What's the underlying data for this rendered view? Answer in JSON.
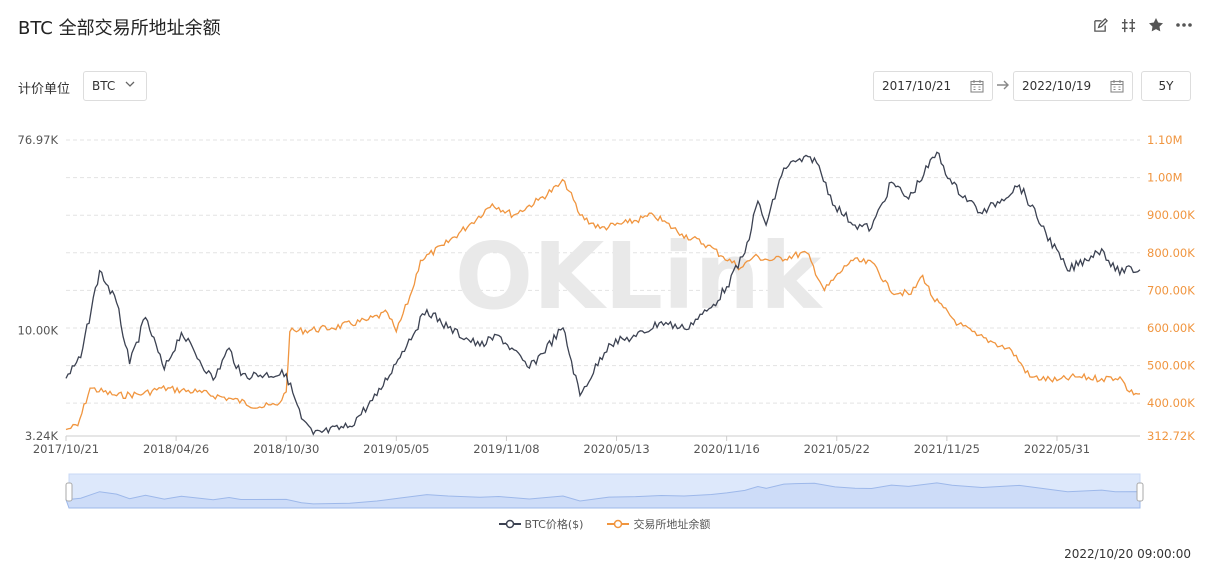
{
  "header": {
    "title": "BTC 全部交易所地址余额"
  },
  "toolbar": {
    "icons": [
      "edit-icon",
      "split-icon",
      "star-icon",
      "more-icon"
    ]
  },
  "controls": {
    "unit_label": "计价单位",
    "unit_value": "BTC",
    "start_date": "2017/10/21",
    "end_date": "2022/10/19",
    "range_button": "5Y"
  },
  "watermark": "OKLink",
  "timestamp": "2022/10/20 09:00:00",
  "colors": {
    "price": "#3c4252",
    "balance": "#f0953f",
    "navigator": "#dde8fb",
    "navigator_line": "#9db8ea"
  },
  "chart_data": {
    "type": "line",
    "x_ticks": [
      "2017/10/21",
      "2018/04/26",
      "2018/10/30",
      "2019/05/05",
      "2019/11/08",
      "2020/05/13",
      "2020/11/16",
      "2021/05/22",
      "2021/11/25",
      "2022/05/31"
    ],
    "y_left": {
      "scale": "log",
      "ticks": [
        "76.97K",
        "10.00K",
        "3.24K"
      ],
      "range": [
        3240,
        76970
      ]
    },
    "y_right": {
      "ticks": [
        "1.10M",
        "1.00M",
        "900.00K",
        "800.00K",
        "700.00K",
        "600.00K",
        "500.00K",
        "400.00K",
        "312.72K"
      ],
      "range": [
        312720,
        1100000
      ]
    },
    "legend": {
      "placement": "bottom-center"
    },
    "grid": true,
    "series": [
      {
        "name": "BTC价格($)",
        "axis": "left",
        "points": [
          [
            "2017/10/21",
            6000
          ],
          [
            "2017/11/15",
            7500
          ],
          [
            "2017/12/17",
            19000
          ],
          [
            "2018/01/15",
            13500
          ],
          [
            "2018/02/06",
            7000
          ],
          [
            "2018/03/05",
            11500
          ],
          [
            "2018/04/06",
            6600
          ],
          [
            "2018/05/05",
            9800
          ],
          [
            "2018/06/28",
            5900
          ],
          [
            "2018/07/25",
            8300
          ],
          [
            "2018/08/14",
            6200
          ],
          [
            "2018/10/30",
            6300
          ],
          [
            "2018/11/25",
            3900
          ],
          [
            "2018/12/15",
            3300
          ],
          [
            "2019/02/15",
            3600
          ],
          [
            "2019/04/02",
            5000
          ],
          [
            "2019/05/15",
            8000
          ],
          [
            "2019/06/26",
            12500
          ],
          [
            "2019/08/01",
            10300
          ],
          [
            "2019/09/24",
            8500
          ],
          [
            "2019/10/26",
            9500
          ],
          [
            "2019/12/17",
            6700
          ],
          [
            "2020/02/12",
            10300
          ],
          [
            "2020/03/12",
            5000
          ],
          [
            "2020/04/30",
            8700
          ],
          [
            "2020/06/15",
            9400
          ],
          [
            "2020/07/28",
            11000
          ],
          [
            "2020/09/05",
            10200
          ],
          [
            "2020/10/21",
            12800
          ],
          [
            "2020/11/16",
            16000
          ],
          [
            "2020/12/17",
            23000
          ],
          [
            "2021/01/08",
            40000
          ],
          [
            "2021/01/22",
            31000
          ],
          [
            "2021/02/21",
            57000
          ],
          [
            "2021/03/13",
            61000
          ],
          [
            "2021/04/14",
            63500
          ],
          [
            "2021/05/19",
            38000
          ],
          [
            "2021/06/22",
            31000
          ],
          [
            "2021/07/20",
            30000
          ],
          [
            "2021/08/23",
            49000
          ],
          [
            "2021/09/21",
            41000
          ],
          [
            "2021/11/08",
            67500
          ],
          [
            "2021/12/04",
            48000
          ],
          [
            "2022/01/24",
            35000
          ],
          [
            "2022/03/28",
            47500
          ],
          [
            "2022/05/12",
            28500
          ],
          [
            "2022/06/18",
            19000
          ],
          [
            "2022/08/15",
            24000
          ],
          [
            "2022/09/07",
            19000
          ],
          [
            "2022/10/19",
            19200
          ]
        ]
      },
      {
        "name": "交易所地址余额",
        "axis": "right",
        "points": [
          [
            "2017/10/21",
            330000
          ],
          [
            "2017/11/10",
            340000
          ],
          [
            "2017/12/01",
            440000
          ],
          [
            "2018/01/15",
            420000
          ],
          [
            "2018/03/01",
            425000
          ],
          [
            "2018/04/01",
            440000
          ],
          [
            "2018/06/01",
            430000
          ],
          [
            "2018/08/01",
            410000
          ],
          [
            "2018/09/15",
            390000
          ],
          [
            "2018/10/15",
            395000
          ],
          [
            "2018/10/30",
            430000
          ],
          [
            "2018/11/05",
            590000
          ],
          [
            "2019/01/15",
            600000
          ],
          [
            "2019/03/15",
            620000
          ],
          [
            "2019/04/20",
            640000
          ],
          [
            "2019/05/05",
            590000
          ],
          [
            "2019/06/01",
            700000
          ],
          [
            "2019/06/15",
            780000
          ],
          [
            "2019/07/25",
            820000
          ],
          [
            "2019/09/10",
            880000
          ],
          [
            "2019/10/15",
            930000
          ],
          [
            "2019/11/20",
            900000
          ],
          [
            "2020/01/01",
            940000
          ],
          [
            "2020/02/15",
            990000
          ],
          [
            "2020/03/12",
            900000
          ],
          [
            "2020/04/15",
            865000
          ],
          [
            "2020/06/01",
            880000
          ],
          [
            "2020/07/15",
            900000
          ],
          [
            "2020/09/01",
            850000
          ],
          [
            "2020/10/15",
            820000
          ],
          [
            "2020/11/10",
            790000
          ],
          [
            "2020/12/10",
            760000
          ],
          [
            "2021/01/01",
            790000
          ],
          [
            "2021/02/01",
            780000
          ],
          [
            "2021/04/01",
            800000
          ],
          [
            "2021/05/01",
            700000
          ],
          [
            "2021/06/15",
            780000
          ],
          [
            "2021/07/25",
            770000
          ],
          [
            "2021/08/20",
            700000
          ],
          [
            "2021/09/25",
            690000
          ],
          [
            "2021/10/15",
            740000
          ],
          [
            "2021/11/01",
            680000
          ],
          [
            "2021/12/15",
            610000
          ],
          [
            "2022/01/15",
            580000
          ],
          [
            "2022/02/15",
            560000
          ],
          [
            "2022/03/15",
            540000
          ],
          [
            "2022/04/15",
            470000
          ],
          [
            "2022/05/31",
            460000
          ],
          [
            "2022/07/01",
            470000
          ],
          [
            "2022/08/15",
            465000
          ],
          [
            "2022/09/15",
            470000
          ],
          [
            "2022/10/01",
            430000
          ],
          [
            "2022/10/19",
            425000
          ]
        ]
      }
    ]
  }
}
